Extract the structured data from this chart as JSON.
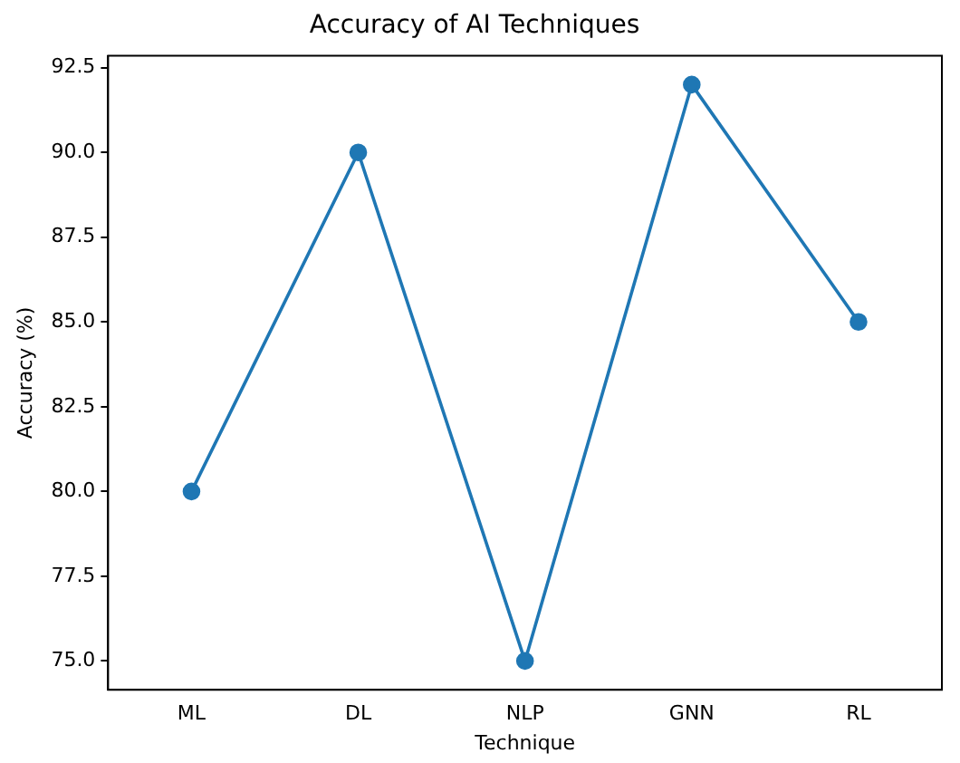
{
  "chart_data": {
    "type": "line",
    "title": "Accuracy of AI Techniques",
    "xlabel": "Technique",
    "ylabel": "Accuracy (%)",
    "categories": [
      "ML",
      "DL",
      "NLP",
      "GNN",
      "RL"
    ],
    "series": [
      {
        "color": "#1f77b4",
        "values": [
          80,
          90,
          75,
          92,
          85
        ]
      }
    ],
    "ylim": [
      74.15,
      92.85
    ],
    "yticks": [
      {
        "value": 75,
        "label": "75.0"
      },
      {
        "value": 77.5,
        "label": "77.5"
      },
      {
        "value": 80,
        "label": "80.0"
      },
      {
        "value": 82.5,
        "label": "82.5"
      },
      {
        "value": 85,
        "label": "85.0"
      },
      {
        "value": 87.5,
        "label": "87.5"
      },
      {
        "value": 90,
        "label": "90.0"
      },
      {
        "value": 92.5,
        "label": "92.5"
      }
    ],
    "grid": false,
    "legend": false,
    "marker": "circle",
    "line_style": "solid"
  }
}
